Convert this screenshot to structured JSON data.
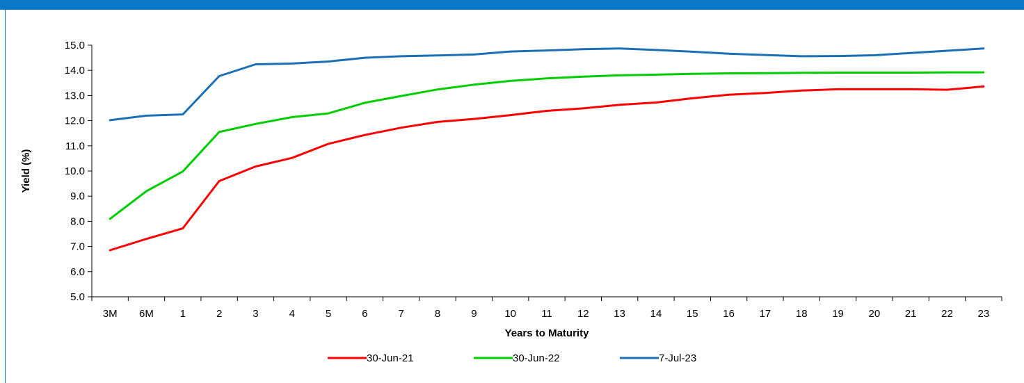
{
  "chart_data": {
    "type": "line",
    "title": "",
    "xlabel": "Years to Maturity",
    "ylabel": "Yield (%)",
    "ylim": [
      5.0,
      15.0
    ],
    "ystep": 1.0,
    "grid": false,
    "legend_position": "bottom-center",
    "categories": [
      "3M",
      "6M",
      "1",
      "2",
      "3",
      "4",
      "5",
      "6",
      "7",
      "8",
      "9",
      "10",
      "11",
      "12",
      "13",
      "14",
      "15",
      "16",
      "17",
      "18",
      "19",
      "20",
      "21",
      "22",
      "23"
    ],
    "series": [
      {
        "name": "30-Jun-21",
        "color": "#ff0000",
        "values": [
          6.85,
          7.3,
          7.72,
          9.6,
          10.18,
          10.52,
          11.08,
          11.43,
          11.72,
          11.95,
          12.07,
          12.22,
          12.39,
          12.49,
          12.63,
          12.72,
          12.89,
          13.03,
          13.1,
          13.2,
          13.25,
          13.25,
          13.25,
          13.23,
          13.36
        ]
      },
      {
        "name": "30-Jun-22",
        "color": "#00cc00",
        "values": [
          8.1,
          9.2,
          9.98,
          11.55,
          11.87,
          12.14,
          12.29,
          12.71,
          12.98,
          13.24,
          13.43,
          13.58,
          13.68,
          13.75,
          13.8,
          13.83,
          13.86,
          13.88,
          13.89,
          13.9,
          13.91,
          13.91,
          13.91,
          13.92,
          13.92
        ]
      },
      {
        "name": "7-Jul-23",
        "color": "#1a6fb5",
        "values": [
          12.02,
          12.2,
          12.25,
          13.77,
          14.24,
          14.27,
          14.35,
          14.5,
          14.56,
          14.59,
          14.63,
          14.75,
          14.79,
          14.84,
          14.87,
          14.81,
          14.74,
          14.66,
          14.61,
          14.56,
          14.57,
          14.6,
          14.69,
          14.78,
          14.87
        ]
      }
    ]
  }
}
